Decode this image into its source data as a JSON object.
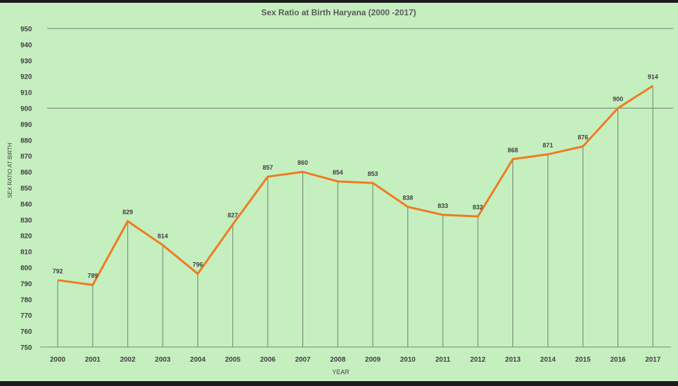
{
  "chart_data": {
    "type": "line",
    "title": "Sex Ratio at Birth Haryana (2000 -2017)",
    "xlabel": "YEAR",
    "ylabel": "SEX RATIO AT BIRTH",
    "categories": [
      "2000",
      "2001",
      "2002",
      "2003",
      "2004",
      "2005",
      "2006",
      "2007",
      "2008",
      "2009",
      "2010",
      "2011",
      "2012",
      "2013",
      "2014",
      "2015",
      "2016",
      "2017"
    ],
    "series": [
      {
        "values": [
          792,
          789,
          829,
          814,
          796,
          827,
          857,
          860,
          854,
          853,
          838,
          833,
          832,
          868,
          871,
          876,
          900,
          914
        ]
      }
    ],
    "ylim": [
      750,
      950
    ],
    "ytick_step": 10,
    "reference_lines": [
      900,
      950
    ],
    "drop_lines": true,
    "data_labels": true,
    "grid": false,
    "colors": {
      "background": "#c6efc0",
      "line": "#ef7b1f",
      "drop_line": "#6b7f6b",
      "text": "#404040",
      "title": "#5a5a5a"
    }
  }
}
